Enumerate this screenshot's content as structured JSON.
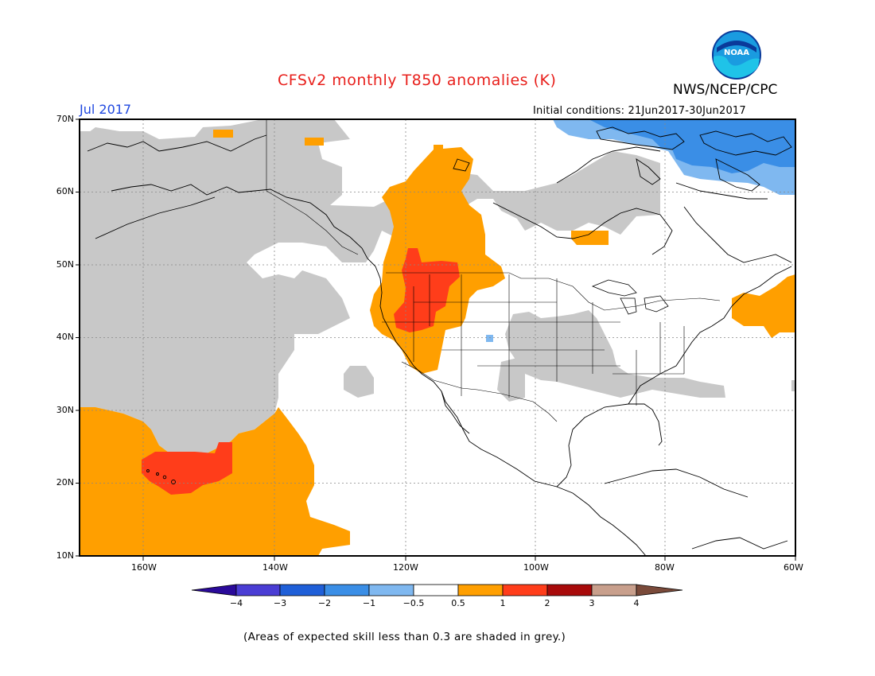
{
  "header": {
    "title": "CFSv2 monthly T850 anomalies (K)",
    "agency": "NWS/NCEP/CPC",
    "valid_month": "Jul 2017",
    "initial_conditions": "Initial conditions: 21Jun2017-30Jun2017"
  },
  "logo": {
    "name": "noaa-logo",
    "text": "NOAA"
  },
  "axes": {
    "lat_labels": [
      "70N",
      "60N",
      "50N",
      "40N",
      "30N",
      "20N",
      "10N"
    ],
    "lon_labels": [
      "160W",
      "140W",
      "120W",
      "100W",
      "80W",
      "60W"
    ]
  },
  "colorbar": {
    "tick_labels": [
      "−4",
      "−3",
      "−2",
      "−1",
      "−0.5",
      "0.5",
      "1",
      "2",
      "3",
      "4"
    ],
    "colors": [
      "#2a0a9a",
      "#4a3dd4",
      "#1f5fd8",
      "#3a8ee6",
      "#7fb8f0",
      "#ffffff",
      "#ff9f00",
      "#ff3d1a",
      "#a80a0a",
      "#c89f8c",
      "#7a4a3a"
    ]
  },
  "footnote": "(Areas of expected skill less than 0.3 are shaded in grey.)",
  "legend_colors": {
    "grey": "#c8c8c8",
    "orange": "#ff9f00",
    "red": "#ff3d1a",
    "light_blue": "#7fb8f0",
    "blue": "#3a8ee6"
  }
}
